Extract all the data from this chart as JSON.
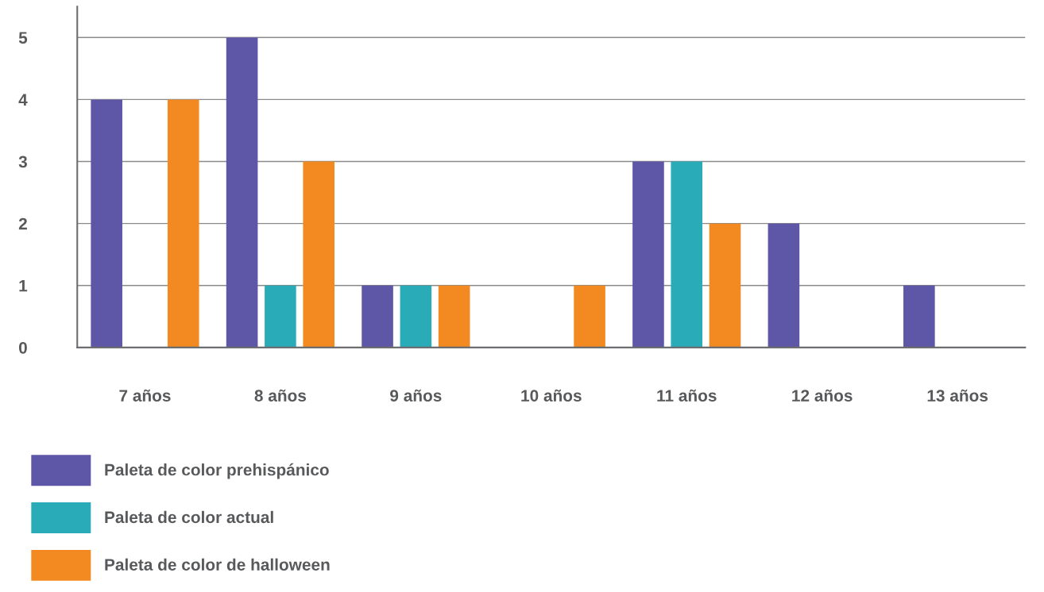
{
  "chart_data": {
    "type": "bar",
    "categories": [
      "7 años",
      "8 años",
      "9 años",
      "10 años",
      "11 años",
      "12 años",
      "13 años"
    ],
    "series": [
      {
        "name": "Paleta de color prehispánico",
        "color": "#5e56a6",
        "values": [
          4,
          5,
          1,
          null,
          3,
          2,
          1
        ]
      },
      {
        "name": "Paleta de color actual",
        "color": "#2aacb8",
        "values": [
          null,
          1,
          1,
          null,
          3,
          null,
          null
        ]
      },
      {
        "name": "Paleta de color de halloween",
        "color": "#f28a21",
        "values": [
          4,
          3,
          1,
          1,
          2,
          null,
          null
        ]
      }
    ],
    "ylim": [
      0,
      5.5
    ],
    "yticks": [
      0,
      1,
      2,
      3,
      4,
      5
    ],
    "grid": "y",
    "legend": "bottom left"
  }
}
